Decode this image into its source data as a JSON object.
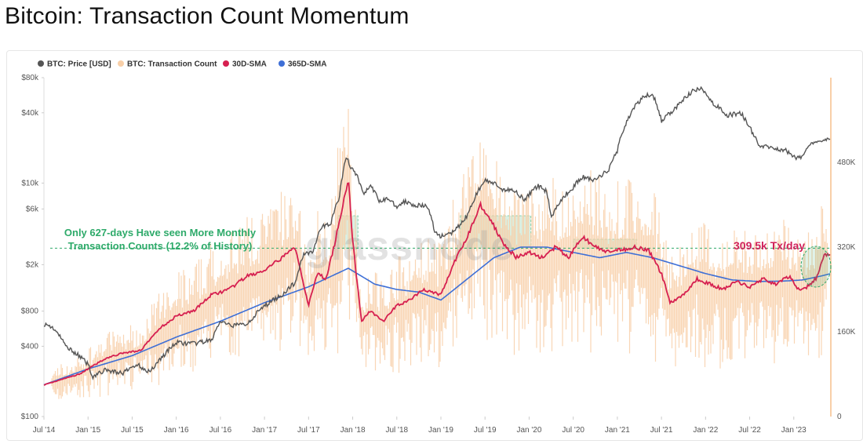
{
  "title": "Bitcoin: Transaction Count Momentum",
  "legend": [
    {
      "label": "BTC: Price [USD]",
      "color": "#555555"
    },
    {
      "label": "BTC: Transaction Count",
      "color": "#f8cfa8"
    },
    {
      "label": "30D-SMA",
      "color": "#d62050"
    },
    {
      "label": "365D-SMA",
      "color": "#3e6fd6"
    }
  ],
  "watermark": "glassnode",
  "annotations": {
    "threshold_line1": "Only 627-days Have seen More Monthly",
    "threshold_line2": "Transaction Counts (12.2% of History)",
    "current_value": "309.5k Tx/day"
  },
  "chart_data": {
    "type": "line",
    "title": "Bitcoin: Transaction Count Momentum",
    "x_ticks": [
      "Jul '14",
      "Jan '15",
      "Jul '15",
      "Jan '16",
      "Jul '16",
      "Jan '17",
      "Jul '17",
      "Jan '18",
      "Jul '18",
      "Jan '19",
      "Jul '19",
      "Jan '20",
      "Jul '20",
      "Jan '21",
      "Jul '21",
      "Jan '22",
      "Jul '22",
      "Jan '23"
    ],
    "y_left": {
      "scale": "log",
      "ticks": [
        "$80k",
        "$40k",
        "$10k",
        "$6k",
        "$2k",
        "$800",
        "$400",
        "$100"
      ],
      "values": [
        80000,
        40000,
        10000,
        6000,
        2000,
        800,
        400,
        100
      ],
      "range": [
        100,
        80000
      ]
    },
    "y_right": {
      "scale": "linear",
      "ticks": [
        "480K",
        "320K",
        "160K",
        "0"
      ],
      "values": [
        480000,
        320000,
        160000,
        0
      ],
      "range": [
        0,
        640000
      ]
    },
    "threshold_txcount": 318000,
    "x_range": [
      2014.5,
      2023.42
    ],
    "series": [
      {
        "name": "BTC: Price [USD]",
        "axis": "left",
        "x": [
          2014.5,
          2014.6,
          2014.75,
          2014.9,
          2015.0,
          2015.05,
          2015.2,
          2015.4,
          2015.55,
          2015.7,
          2015.85,
          2016.0,
          2016.2,
          2016.4,
          2016.5,
          2016.6,
          2016.8,
          2017.0,
          2017.1,
          2017.2,
          2017.35,
          2017.45,
          2017.55,
          2017.65,
          2017.75,
          2017.85,
          2017.93,
          2017.97,
          2018.05,
          2018.12,
          2018.2,
          2018.3,
          2018.4,
          2018.5,
          2018.6,
          2018.7,
          2018.85,
          2018.93,
          2019.0,
          2019.15,
          2019.3,
          2019.42,
          2019.5,
          2019.6,
          2019.7,
          2019.8,
          2019.95,
          2020.1,
          2020.2,
          2020.25,
          2020.35,
          2020.5,
          2020.6,
          2020.75,
          2020.9,
          2021.0,
          2021.1,
          2021.2,
          2021.3,
          2021.4,
          2021.5,
          2021.6,
          2021.7,
          2021.85,
          2021.95,
          2022.1,
          2022.25,
          2022.4,
          2022.5,
          2022.6,
          2022.75,
          2022.9,
          2023.0,
          2023.1,
          2023.2,
          2023.3,
          2023.42
        ],
        "values": [
          620,
          580,
          400,
          330,
          280,
          220,
          250,
          235,
          280,
          240,
          330,
          430,
          420,
          450,
          650,
          600,
          620,
          880,
          1000,
          1100,
          1400,
          2500,
          2600,
          4200,
          4500,
          7500,
          17000,
          14000,
          11500,
          8000,
          9500,
          7000,
          7400,
          6300,
          7000,
          6500,
          6300,
          3800,
          3500,
          3800,
          5200,
          8500,
          10500,
          10000,
          8500,
          9000,
          7200,
          9500,
          8500,
          5000,
          7000,
          9200,
          11300,
          10500,
          13000,
          19000,
          33000,
          45000,
          55000,
          58000,
          34000,
          40000,
          47000,
          61000,
          64000,
          47000,
          38000,
          40000,
          30000,
          21000,
          20000,
          19200,
          16600,
          16800,
          22500,
          23000,
          25000
        ]
      },
      {
        "name": "30D-SMA",
        "axis": "right",
        "x": [
          2014.5,
          2014.7,
          2014.9,
          2015.0,
          2015.2,
          2015.4,
          2015.6,
          2015.8,
          2016.0,
          2016.2,
          2016.4,
          2016.6,
          2016.8,
          2017.0,
          2017.2,
          2017.35,
          2017.5,
          2017.6,
          2017.7,
          2017.8,
          2017.95,
          2018.0,
          2018.1,
          2018.2,
          2018.35,
          2018.5,
          2018.65,
          2018.8,
          2019.0,
          2019.15,
          2019.3,
          2019.45,
          2019.55,
          2019.7,
          2019.85,
          2020.0,
          2020.15,
          2020.3,
          2020.45,
          2020.6,
          2020.75,
          2020.9,
          2021.05,
          2021.2,
          2021.35,
          2021.5,
          2021.6,
          2021.75,
          2021.9,
          2022.05,
          2022.2,
          2022.35,
          2022.5,
          2022.65,
          2022.8,
          2022.95,
          2023.05,
          2023.15,
          2023.25,
          2023.35,
          2023.42
        ],
        "values": [
          60000,
          70000,
          80000,
          90000,
          110000,
          120000,
          125000,
          165000,
          190000,
          200000,
          230000,
          240000,
          265000,
          275000,
          300000,
          320000,
          210000,
          270000,
          260000,
          330000,
          450000,
          330000,
          180000,
          200000,
          180000,
          210000,
          220000,
          240000,
          230000,
          290000,
          340000,
          400000,
          375000,
          330000,
          300000,
          310000,
          300000,
          320000,
          300000,
          340000,
          320000,
          310000,
          315000,
          320000,
          315000,
          270000,
          215000,
          230000,
          260000,
          250000,
          240000,
          255000,
          245000,
          260000,
          250000,
          265000,
          240000,
          245000,
          260000,
          305000,
          309500
        ]
      },
      {
        "name": "365D-SMA",
        "axis": "right",
        "x": [
          2014.5,
          2015.0,
          2015.5,
          2016.0,
          2016.5,
          2017.0,
          2017.5,
          2017.95,
          2018.25,
          2018.5,
          2018.75,
          2019.0,
          2019.3,
          2019.6,
          2019.9,
          2020.2,
          2020.5,
          2020.8,
          2021.1,
          2021.4,
          2021.7,
          2022.0,
          2022.3,
          2022.6,
          2022.9,
          2023.1,
          2023.3,
          2023.42
        ],
        "values": [
          60000,
          90000,
          115000,
          150000,
          180000,
          215000,
          245000,
          280000,
          250000,
          240000,
          235000,
          220000,
          260000,
          300000,
          320000,
          320000,
          310000,
          300000,
          310000,
          300000,
          285000,
          270000,
          258000,
          255000,
          256000,
          258000,
          265000,
          270000
        ]
      }
    ]
  }
}
